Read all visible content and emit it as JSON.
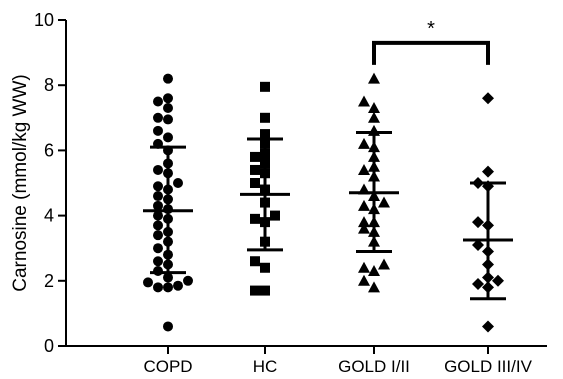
{
  "chart_data": {
    "type": "scatter",
    "ylabel": "Carnosine (mmol/kg WW)",
    "ylim": [
      0,
      10
    ],
    "yticks": [
      0,
      2,
      4,
      6,
      8,
      10
    ],
    "grid": false,
    "categories": [
      "COPD",
      "HC",
      "GOLD I/II",
      "GOLD III/IV"
    ],
    "series": [
      {
        "category": "COPD",
        "marker": "circle",
        "mean": 4.15,
        "sd_upper": 6.1,
        "sd_lower": 2.25,
        "values": [
          8.2,
          7.6,
          7.5,
          7.3,
          7.0,
          6.95,
          6.6,
          6.4,
          6.2,
          6.0,
          5.6,
          5.4,
          5.3,
          5.0,
          4.9,
          4.8,
          4.6,
          4.5,
          4.3,
          4.2,
          4.0,
          3.9,
          3.7,
          3.5,
          3.4,
          3.2,
          3.0,
          2.8,
          2.6,
          2.5,
          2.3,
          2.1,
          2.0,
          1.95,
          1.85,
          1.8,
          1.8,
          0.6
        ]
      },
      {
        "category": "HC",
        "marker": "square",
        "mean": 4.65,
        "sd_upper": 6.35,
        "sd_lower": 2.95,
        "values": [
          7.95,
          7.0,
          6.5,
          6.2,
          5.9,
          5.8,
          5.6,
          5.4,
          5.3,
          5.0,
          4.8,
          4.4,
          4.0,
          3.9,
          3.8,
          3.2,
          2.6,
          2.4,
          1.7,
          1.7
        ]
      },
      {
        "category": "GOLD I/II",
        "marker": "triangle",
        "mean": 4.7,
        "sd_upper": 6.55,
        "sd_lower": 2.9,
        "values": [
          8.2,
          7.5,
          7.3,
          7.0,
          6.6,
          6.2,
          6.1,
          5.8,
          5.5,
          5.4,
          5.2,
          4.8,
          4.6,
          4.4,
          4.3,
          4.2,
          3.8,
          3.8,
          3.6,
          3.5,
          3.2,
          2.5,
          2.4,
          2.3,
          2.0,
          1.8
        ]
      },
      {
        "category": "GOLD III/IV",
        "marker": "diamond",
        "mean": 3.25,
        "sd_upper": 5.0,
        "sd_lower": 1.45,
        "values": [
          7.6,
          5.35,
          5.0,
          4.9,
          3.8,
          3.7,
          3.1,
          2.9,
          2.5,
          2.1,
          2.0,
          1.9,
          1.8,
          0.6
        ]
      }
    ],
    "annotations": [
      {
        "text": "*",
        "between": [
          "GOLD I/II",
          "GOLD III/IV"
        ],
        "y": 9.3
      }
    ]
  }
}
